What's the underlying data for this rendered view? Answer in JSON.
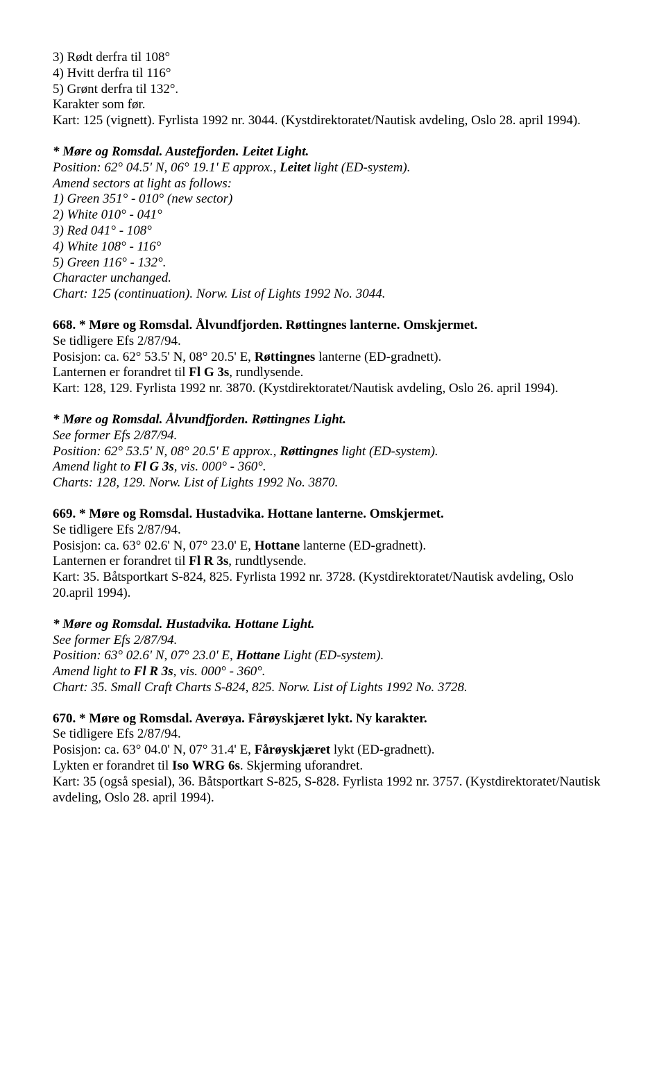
{
  "blocks": [
    {
      "lines": [
        [
          {
            "t": "3) Rødt derfra til 108°"
          }
        ],
        [
          {
            "t": "4) Hvitt derfra til 116°"
          }
        ],
        [
          {
            "t": "5) Grønt derfra til 132°."
          }
        ],
        [
          {
            "t": "Karakter som før."
          }
        ],
        [
          {
            "t": "Kart: 125 (vignett). Fyrlista 1992 nr. 3044. (Kystdirektoratet/Nautisk avdeling, Oslo 28. april 1994)."
          }
        ]
      ]
    },
    {
      "lines": [
        [
          {
            "t": "* Møre og Romsdal. Austefjorden. Leitet Light.",
            "cls": "bold-italic"
          }
        ],
        [
          {
            "t": "Position: 62° 04.5' N, 06° 19.1' E approx., ",
            "cls": "italic"
          },
          {
            "t": "Leitet",
            "cls": "bold-italic"
          },
          {
            "t": " light (ED-system).",
            "cls": "italic"
          }
        ],
        [
          {
            "t": "Amend sectors at light as follows:",
            "cls": "italic"
          }
        ],
        [
          {
            "t": "1) Green 351° - 010° (new sector)",
            "cls": "italic"
          }
        ],
        [
          {
            "t": "2) White 010° - 041°",
            "cls": "italic"
          }
        ],
        [
          {
            "t": "3) Red 041° - 108°",
            "cls": "italic"
          }
        ],
        [
          {
            "t": "4) White 108° - 116°",
            "cls": "italic"
          }
        ],
        [
          {
            "t": "5) Green 116° - 132°.",
            "cls": "italic"
          }
        ],
        [
          {
            "t": "Character unchanged.",
            "cls": "italic"
          }
        ],
        [
          {
            "t": "Chart: 125 (continuation). Norw. List of Lights 1992 No. 3044.",
            "cls": "italic"
          }
        ]
      ]
    },
    {
      "lines": [
        [
          {
            "t": "668. * Møre og Romsdal. Ålvundfjorden. Røttingnes lanterne. Omskjermet.",
            "cls": "bold"
          }
        ],
        [
          {
            "t": "Se tidligere Efs 2/87/94."
          }
        ],
        [
          {
            "t": "Posisjon: ca. 62° 53.5' N, 08° 20.5' E, "
          },
          {
            "t": "Røttingnes",
            "cls": "bold"
          },
          {
            "t": " lanterne (ED-gradnett)."
          }
        ],
        [
          {
            "t": "Lanternen er forandret til "
          },
          {
            "t": "Fl G 3s",
            "cls": "bold"
          },
          {
            "t": ", rundlysende."
          }
        ],
        [
          {
            "t": "Kart: 128, 129. Fyrlista 1992 nr. 3870. (Kystdirektoratet/Nautisk avdeling, Oslo 26. april 1994)."
          }
        ]
      ]
    },
    {
      "lines": [
        [
          {
            "t": "* Møre og Romsdal. Ålvundfjorden. Røttingnes Light.",
            "cls": "bold-italic"
          }
        ],
        [
          {
            "t": "See former Efs 2/87/94.",
            "cls": "italic"
          }
        ],
        [
          {
            "t": "Position: 62° 53.5' N, 08° 20.5' E approx., ",
            "cls": "italic"
          },
          {
            "t": "Røttingnes",
            "cls": "bold-italic"
          },
          {
            "t": " light (ED-system).",
            "cls": "italic"
          }
        ],
        [
          {
            "t": "Amend light to ",
            "cls": "italic"
          },
          {
            "t": "Fl G 3s",
            "cls": "bold-italic"
          },
          {
            "t": ", vis. 000° - 360°.",
            "cls": "italic"
          }
        ],
        [
          {
            "t": "Charts: 128, 129. Norw. List of Lights 1992 No. 3870.",
            "cls": "italic"
          }
        ]
      ]
    },
    {
      "lines": [
        [
          {
            "t": "669. * Møre og Romsdal. Hustadvika. Hottane lanterne. Omskjermet.",
            "cls": "bold"
          }
        ],
        [
          {
            "t": "Se tidligere Efs 2/87/94."
          }
        ],
        [
          {
            "t": "Posisjon: ca. 63° 02.6' N, 07° 23.0' E, "
          },
          {
            "t": "Hottane",
            "cls": "bold"
          },
          {
            "t": " lanterne (ED-gradnett)."
          }
        ],
        [
          {
            "t": "Lanternen er forandret til "
          },
          {
            "t": "Fl R 3s",
            "cls": "bold"
          },
          {
            "t": ", rundtlysende."
          }
        ],
        [
          {
            "t": "Kart: 35. Båtsportkart S-824, 825. Fyrlista 1992 nr. 3728. (Kystdirektoratet/Nautisk avdeling, Oslo 20.april 1994)."
          }
        ]
      ]
    },
    {
      "lines": [
        [
          {
            "t": "* Møre og Romsdal. Hustadvika. Hottane Light.",
            "cls": "bold-italic"
          }
        ],
        [
          {
            "t": "See former Efs 2/87/94.",
            "cls": "italic"
          }
        ],
        [
          {
            "t": "Position: 63° 02.6' N, 07° 23.0' E, ",
            "cls": "italic"
          },
          {
            "t": "Hottane",
            "cls": "bold-italic"
          },
          {
            "t": " Light (ED-system).",
            "cls": "italic"
          }
        ],
        [
          {
            "t": "Amend light to ",
            "cls": "italic"
          },
          {
            "t": "Fl R 3s",
            "cls": "bold-italic"
          },
          {
            "t": ", vis. 000° - 360°.",
            "cls": "italic"
          }
        ],
        [
          {
            "t": "Chart: 35. Small Craft Charts S-824, 825. Norw. List of Lights 1992 No. 3728.",
            "cls": "italic"
          }
        ]
      ]
    },
    {
      "lines": [
        [
          {
            "t": "670. * Møre og Romsdal. Averøya. Fårøyskjæret lykt. Ny karakter.",
            "cls": "bold"
          }
        ],
        [
          {
            "t": "Se tidligere Efs 2/87/94."
          }
        ],
        [
          {
            "t": "Posisjon: ca. 63° 04.0' N, 07° 31.4' E, "
          },
          {
            "t": "Fårøyskjæret",
            "cls": "bold"
          },
          {
            "t": " lykt (ED-gradnett)."
          }
        ],
        [
          {
            "t": "Lykten er forandret til "
          },
          {
            "t": "Iso WRG 6s",
            "cls": "bold"
          },
          {
            "t": ". Skjerming uforandret."
          }
        ],
        [
          {
            "t": "Kart: 35 (også spesial), 36. Båtsportkart S-825, S-828. Fyrlista 1992 nr. 3757. (Kystdirektoratet/Nautisk avdeling, Oslo 28. april 1994)."
          }
        ]
      ]
    }
  ]
}
